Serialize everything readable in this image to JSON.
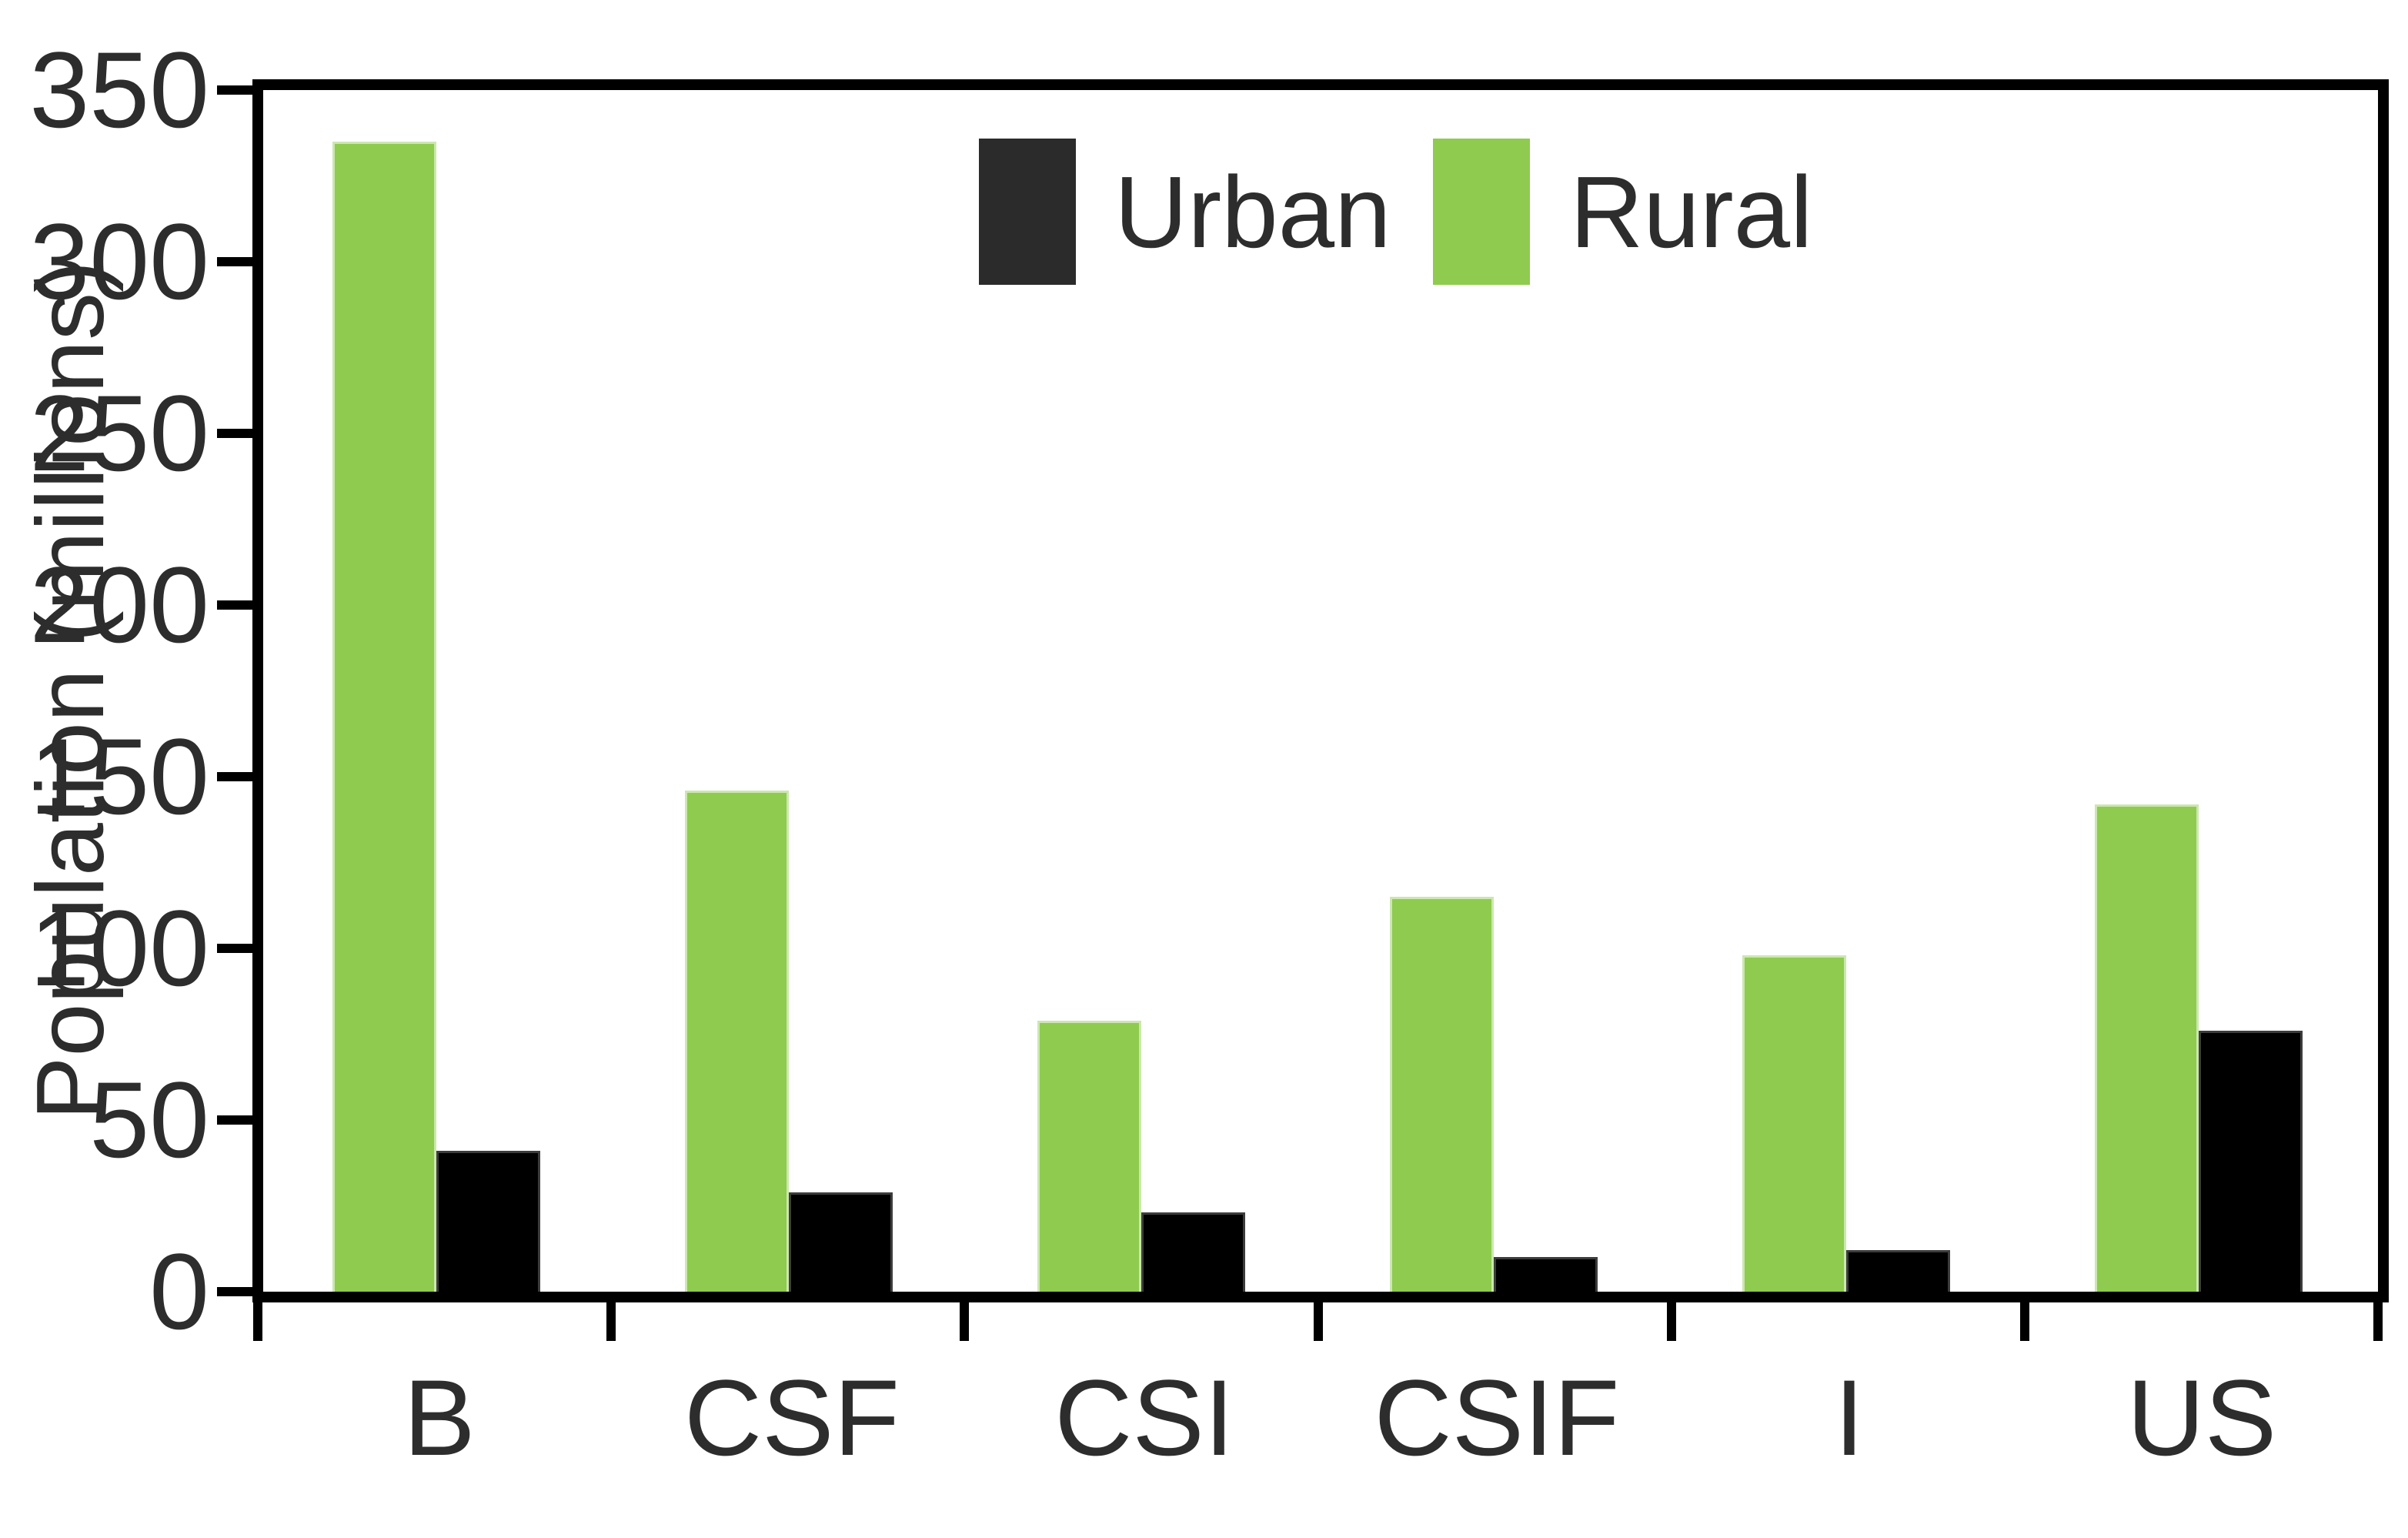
{
  "chart_data": {
    "type": "bar",
    "title": "",
    "xlabel": "",
    "ylabel": "Population (millions)",
    "categories": [
      "B",
      "CSF",
      "CSI",
      "CSIF",
      "I",
      "US"
    ],
    "series": [
      {
        "name": "Urban",
        "color": "#000000",
        "legend_color": "#2b2b2b",
        "values": [
          41,
          29,
          23,
          10,
          12,
          76
        ]
      },
      {
        "name": "Rural",
        "color": "#8ecb4f",
        "legend_color": "#8ecb4f",
        "values": [
          335,
          146,
          79,
          115,
          98,
          142
        ]
      }
    ],
    "ylim": [
      0,
      350
    ],
    "yticks": [
      0,
      50,
      100,
      150,
      200,
      250,
      300,
      350
    ],
    "grid": false,
    "legend_position": "top-center",
    "frame_color": "#000000",
    "tick_label_color": "#2d2d2d"
  }
}
